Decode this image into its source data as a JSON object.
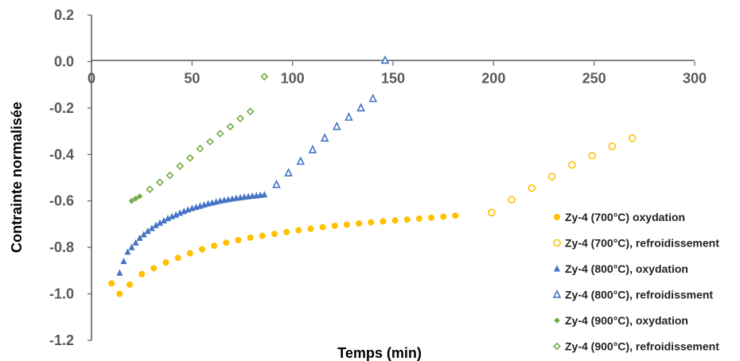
{
  "chart_data": {
    "type": "scatter",
    "xlabel": "Temps (min)",
    "ylabel": "Contrainte normalisée",
    "xlim": [
      0,
      300
    ],
    "ylim": [
      -1.2,
      0.2
    ],
    "x_ticks": [
      0,
      50,
      100,
      150,
      200,
      250,
      300
    ],
    "x_tick_labels": [
      "0",
      "50",
      "100",
      "150",
      "200",
      "250",
      "300"
    ],
    "y_ticks": [
      0.2,
      0.0,
      -0.2,
      -0.4,
      -0.6,
      -0.8,
      -1.0,
      -1.2
    ],
    "y_tick_labels": [
      "0.2",
      "0.0",
      "-0.2",
      "-0.4",
      "-0.6",
      "-0.8",
      "-1.0",
      "-1.2"
    ],
    "grid": false,
    "legend_position": "right",
    "series": [
      {
        "name": "Zy-4 (700°C) oxydation",
        "marker": "circle",
        "filled": true,
        "color": "#ffc000",
        "x": [
          10,
          14,
          19,
          25,
          31,
          37,
          43,
          49,
          55,
          61,
          67,
          73,
          79,
          85,
          91,
          97,
          103,
          109,
          115,
          121,
          127,
          133,
          139,
          145,
          151,
          157,
          163,
          169,
          175,
          181
        ],
        "y": [
          -0.955,
          -1.0,
          -0.96,
          -0.915,
          -0.89,
          -0.865,
          -0.845,
          -0.825,
          -0.808,
          -0.793,
          -0.78,
          -0.769,
          -0.758,
          -0.75,
          -0.742,
          -0.734,
          -0.726,
          -0.72,
          -0.713,
          -0.707,
          -0.702,
          -0.697,
          -0.692,
          -0.688,
          -0.684,
          -0.68,
          -0.676,
          -0.672,
          -0.668,
          -0.663
        ]
      },
      {
        "name": "Zy-4 (700°C), refroidissement",
        "marker": "circle",
        "filled": false,
        "color": "#ffc000",
        "x": [
          199,
          209,
          219,
          229,
          239,
          249,
          259,
          269
        ],
        "y": [
          -0.65,
          -0.595,
          -0.545,
          -0.495,
          -0.445,
          -0.405,
          -0.365,
          -0.33
        ]
      },
      {
        "name": "Zy-4 (800°C), oxydation",
        "marker": "triangle",
        "filled": true,
        "color": "#4472c4",
        "x": [
          14,
          16,
          18,
          20,
          22,
          24,
          26,
          28,
          30,
          32,
          34,
          36,
          38,
          40,
          42,
          44,
          46,
          48,
          50,
          52,
          54,
          56,
          58,
          60,
          62,
          64,
          66,
          68,
          70,
          72,
          74,
          76,
          78,
          80,
          82,
          84,
          86
        ],
        "y": [
          -0.91,
          -0.86,
          -0.82,
          -0.8,
          -0.78,
          -0.76,
          -0.745,
          -0.73,
          -0.718,
          -0.705,
          -0.695,
          -0.685,
          -0.675,
          -0.667,
          -0.66,
          -0.652,
          -0.645,
          -0.638,
          -0.632,
          -0.627,
          -0.622,
          -0.617,
          -0.612,
          -0.608,
          -0.604,
          -0.6,
          -0.597,
          -0.594,
          -0.591,
          -0.588,
          -0.586,
          -0.583,
          -0.581,
          -0.579,
          -0.577,
          -0.575,
          -0.573
        ]
      },
      {
        "name": "Zy-4 (800°C), refroidissment",
        "marker": "triangle",
        "filled": false,
        "color": "#4472c4",
        "x": [
          92,
          98,
          104,
          110,
          116,
          122,
          128,
          134,
          140,
          146
        ],
        "y": [
          -0.53,
          -0.48,
          -0.43,
          -0.38,
          -0.33,
          -0.28,
          -0.24,
          -0.2,
          -0.16,
          0.005
        ]
      },
      {
        "name": "Zy-4 (900°C), oxydation",
        "marker": "diamond",
        "filled": true,
        "color": "#70ad47",
        "x": [
          20,
          22,
          24
        ],
        "y": [
          -0.6,
          -0.59,
          -0.58
        ]
      },
      {
        "name": "Zy-4 (900°C), refroidissement",
        "marker": "diamond",
        "filled": false,
        "color": "#70ad47",
        "x": [
          29,
          34,
          39,
          44,
          49,
          54,
          59,
          64,
          69,
          74,
          79,
          86
        ],
        "y": [
          -0.55,
          -0.52,
          -0.49,
          -0.45,
          -0.415,
          -0.375,
          -0.345,
          -0.31,
          -0.28,
          -0.245,
          -0.215,
          -0.065
        ]
      }
    ]
  }
}
